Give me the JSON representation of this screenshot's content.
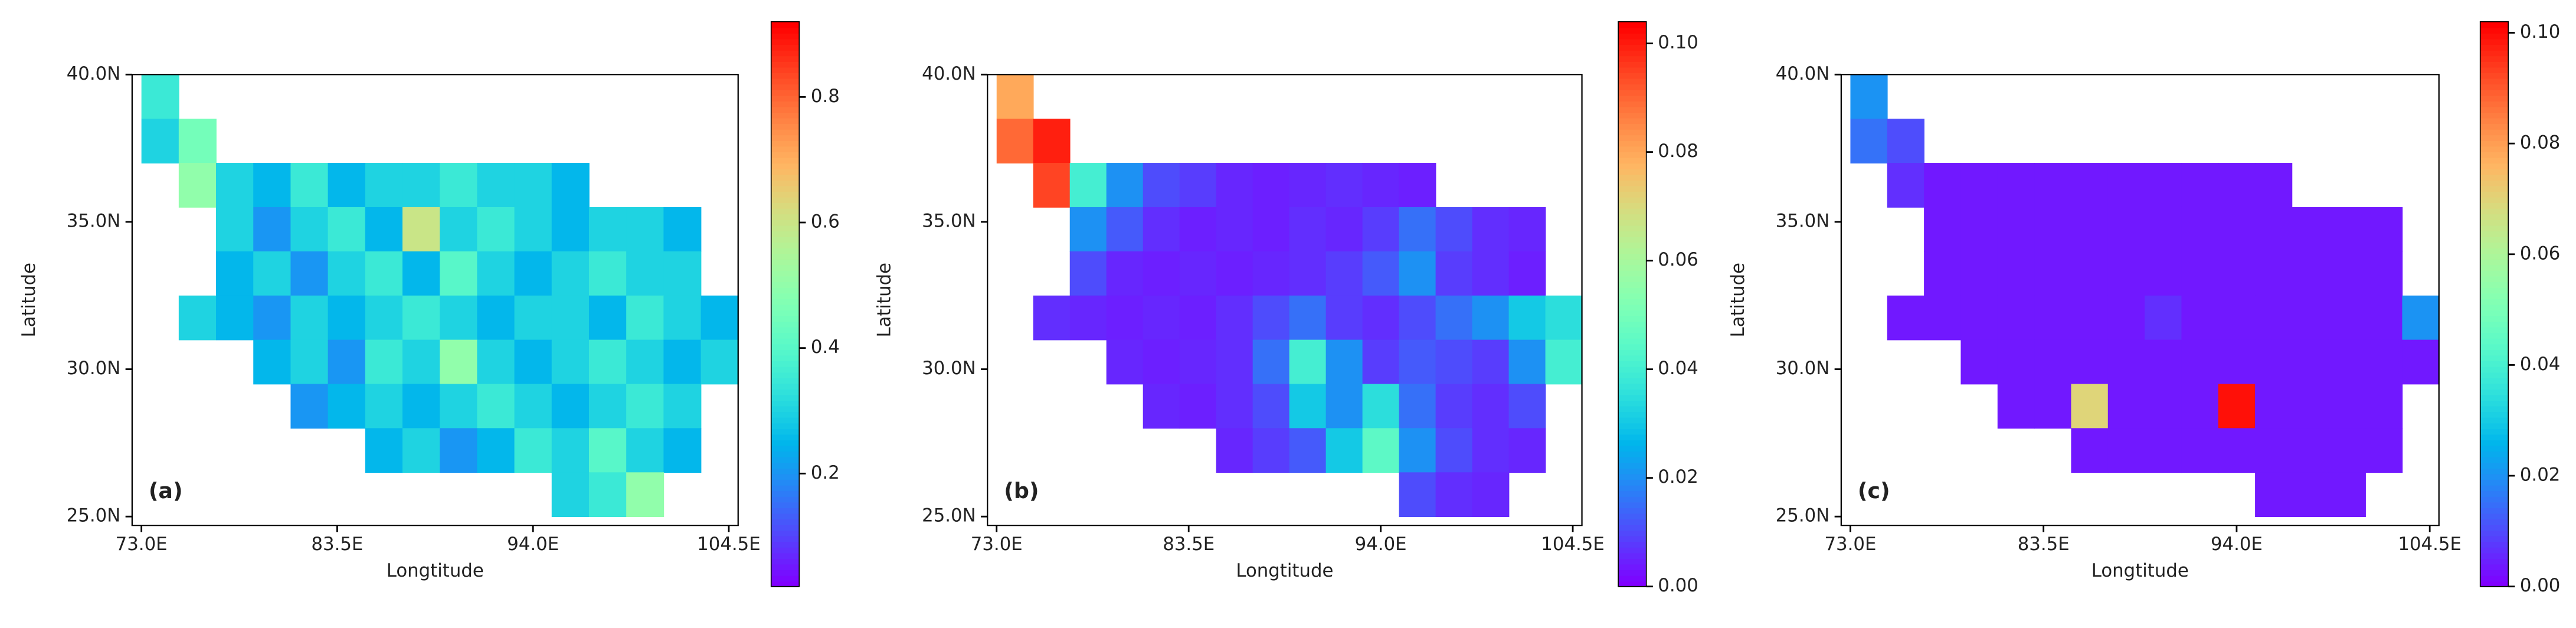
{
  "chart_data": [
    {
      "type": "heatmap",
      "panel_label": "(a)",
      "xlabel": "Longtitude",
      "ylabel": "Latitude",
      "colormap": "rainbow",
      "x": [
        74,
        76,
        78,
        80,
        82,
        84,
        86,
        88,
        90,
        92,
        94,
        96,
        98,
        100,
        102,
        104
      ],
      "y": [
        39.25,
        37.75,
        36.25,
        34.75,
        33.25,
        31.75,
        30.25,
        28.75,
        27.25,
        25.75
      ],
      "xlim": [
        72.5,
        105
      ],
      "ylim": [
        24.7,
        40
      ],
      "xticks": [
        {
          "value": 73,
          "label": "73.0E"
        },
        {
          "value": 83.5,
          "label": "83.5E"
        },
        {
          "value": 94,
          "label": "94.0E"
        },
        {
          "value": 104.5,
          "label": "104.5E"
        }
      ],
      "yticks": [
        {
          "value": 25,
          "label": "25.0N"
        },
        {
          "value": 30,
          "label": "30.0N"
        },
        {
          "value": 35,
          "label": "35.0N"
        },
        {
          "value": 40,
          "label": "40.0N"
        }
      ],
      "clim": [
        0.02,
        0.92
      ],
      "cticks": [
        0.2,
        0.4,
        0.6,
        0.8
      ],
      "values": [
        [
          0.35,
          null,
          null,
          null,
          null,
          null,
          null,
          null,
          null,
          null,
          null,
          null,
          null,
          null,
          null,
          null
        ],
        [
          0.3,
          0.45,
          null,
          null,
          null,
          null,
          null,
          null,
          null,
          null,
          null,
          null,
          null,
          null,
          null,
          null
        ],
        [
          null,
          0.5,
          0.3,
          0.25,
          0.35,
          0.25,
          0.3,
          0.3,
          0.35,
          0.3,
          0.3,
          0.25,
          null,
          null,
          null,
          null
        ],
        [
          null,
          null,
          0.3,
          0.2,
          0.3,
          0.35,
          0.25,
          0.6,
          0.3,
          0.35,
          0.3,
          0.25,
          0.3,
          0.3,
          0.25,
          null
        ],
        [
          null,
          null,
          0.25,
          0.3,
          0.2,
          0.3,
          0.35,
          0.25,
          0.4,
          0.3,
          0.25,
          0.3,
          0.35,
          0.3,
          0.3,
          null
        ],
        [
          null,
          0.3,
          0.25,
          0.2,
          0.3,
          0.25,
          0.3,
          0.35,
          0.3,
          0.25,
          0.3,
          0.3,
          0.25,
          0.35,
          0.3,
          0.25
        ],
        [
          null,
          null,
          null,
          0.25,
          0.3,
          0.2,
          0.35,
          0.3,
          0.5,
          0.3,
          0.25,
          0.3,
          0.35,
          0.3,
          0.25,
          0.3
        ],
        [
          null,
          null,
          null,
          null,
          0.2,
          0.25,
          0.3,
          0.25,
          0.3,
          0.35,
          0.3,
          0.25,
          0.3,
          0.35,
          0.3,
          null
        ],
        [
          null,
          null,
          null,
          null,
          null,
          null,
          0.25,
          0.3,
          0.2,
          0.25,
          0.35,
          0.3,
          0.4,
          0.3,
          0.25,
          null
        ],
        [
          null,
          null,
          null,
          null,
          null,
          null,
          null,
          null,
          null,
          null,
          null,
          0.3,
          0.35,
          0.5,
          null,
          null
        ]
      ]
    },
    {
      "type": "heatmap",
      "panel_label": "(b)",
      "xlabel": "Longtitude",
      "ylabel": "Latitude",
      "colormap": "rainbow",
      "x": [
        74,
        76,
        78,
        80,
        82,
        84,
        86,
        88,
        90,
        92,
        94,
        96,
        98,
        100,
        102,
        104
      ],
      "y": [
        39.25,
        37.75,
        36.25,
        34.75,
        33.25,
        31.75,
        30.25,
        28.75,
        27.25,
        25.75
      ],
      "xlim": [
        72.5,
        105
      ],
      "ylim": [
        24.7,
        40
      ],
      "xticks": [
        {
          "value": 73,
          "label": "73.0E"
        },
        {
          "value": 83.5,
          "label": "83.5E"
        },
        {
          "value": 94,
          "label": "94.0E"
        },
        {
          "value": 104.5,
          "label": "104.5E"
        }
      ],
      "yticks": [
        {
          "value": 25,
          "label": "25.0N"
        },
        {
          "value": 30,
          "label": "30.0N"
        },
        {
          "value": 35,
          "label": "35.0N"
        },
        {
          "value": 40,
          "label": "40.0N"
        }
      ],
      "clim": [
        0,
        0.104
      ],
      "cticks": [
        {
          "value": 0,
          "label": "0.00"
        },
        {
          "value": 0.02,
          "label": "0.02"
        },
        {
          "value": 0.04,
          "label": "0.04"
        },
        {
          "value": 0.06,
          "label": "0.06"
        },
        {
          "value": 0.08,
          "label": "0.08"
        },
        {
          "value": 0.1,
          "label": "0.10"
        }
      ],
      "values": [
        [
          0.08,
          null,
          null,
          null,
          null,
          null,
          null,
          null,
          null,
          null,
          null,
          null,
          null,
          null,
          null,
          null
        ],
        [
          0.09,
          0.1,
          null,
          null,
          null,
          null,
          null,
          null,
          null,
          null,
          null,
          null,
          null,
          null,
          null,
          null
        ],
        [
          null,
          0.095,
          0.04,
          0.02,
          0.01,
          0.008,
          0.005,
          0.004,
          0.005,
          0.006,
          0.005,
          0.004,
          null,
          null,
          null,
          null
        ],
        [
          null,
          null,
          0.02,
          0.012,
          0.006,
          0.004,
          0.005,
          0.004,
          0.006,
          0.005,
          0.008,
          0.015,
          0.01,
          0.006,
          0.005,
          null
        ],
        [
          null,
          null,
          0.01,
          0.005,
          0.004,
          0.005,
          0.004,
          0.005,
          0.006,
          0.008,
          0.012,
          0.02,
          0.008,
          0.006,
          0.004,
          null
        ],
        [
          null,
          0.006,
          0.005,
          0.004,
          0.005,
          0.004,
          0.006,
          0.01,
          0.015,
          0.008,
          0.006,
          0.01,
          0.015,
          0.02,
          0.03,
          0.035
        ],
        [
          null,
          null,
          null,
          0.005,
          0.004,
          0.005,
          0.006,
          0.015,
          0.04,
          0.02,
          0.008,
          0.012,
          0.01,
          0.008,
          0.02,
          0.04
        ],
        [
          null,
          null,
          null,
          null,
          0.005,
          0.004,
          0.006,
          0.01,
          0.03,
          0.02,
          0.035,
          0.015,
          0.008,
          0.006,
          0.01,
          null
        ],
        [
          null,
          null,
          null,
          null,
          null,
          null,
          0.005,
          0.008,
          0.012,
          0.03,
          0.045,
          0.02,
          0.01,
          0.006,
          0.005,
          null
        ],
        [
          null,
          null,
          null,
          null,
          null,
          null,
          null,
          null,
          null,
          null,
          null,
          0.01,
          0.006,
          0.005,
          null,
          null
        ]
      ]
    },
    {
      "type": "heatmap",
      "panel_label": "(c)",
      "xlabel": "Longtitude",
      "ylabel": "Latitude",
      "colormap": "rainbow",
      "x": [
        74,
        76,
        78,
        80,
        82,
        84,
        86,
        88,
        90,
        92,
        94,
        96,
        98,
        100,
        102,
        104
      ],
      "y": [
        39.25,
        37.75,
        36.25,
        34.75,
        33.25,
        31.75,
        30.25,
        28.75,
        27.25,
        25.75
      ],
      "xlim": [
        72.5,
        105
      ],
      "ylim": [
        24.7,
        40
      ],
      "xticks": [
        {
          "value": 73,
          "label": "73.0E"
        },
        {
          "value": 83.5,
          "label": "83.5E"
        },
        {
          "value": 94,
          "label": "94.0E"
        },
        {
          "value": 104.5,
          "label": "104.5E"
        }
      ],
      "yticks": [
        {
          "value": 25,
          "label": "25.0N"
        },
        {
          "value": 30,
          "label": "30.0N"
        },
        {
          "value": 35,
          "label": "35.0N"
        },
        {
          "value": 40,
          "label": "40.0N"
        }
      ],
      "clim": [
        0,
        0.102
      ],
      "cticks": [
        {
          "value": 0,
          "label": "0.00"
        },
        {
          "value": 0.02,
          "label": "0.02"
        },
        {
          "value": 0.04,
          "label": "0.04"
        },
        {
          "value": 0.06,
          "label": "0.06"
        },
        {
          "value": 0.08,
          "label": "0.08"
        },
        {
          "value": 0.1,
          "label": "0.10"
        }
      ],
      "values": [
        [
          0.02,
          null,
          null,
          null,
          null,
          null,
          null,
          null,
          null,
          null,
          null,
          null,
          null,
          null,
          null,
          null
        ],
        [
          0.015,
          0.01,
          null,
          null,
          null,
          null,
          null,
          null,
          null,
          null,
          null,
          null,
          null,
          null,
          null,
          null
        ],
        [
          null,
          0.006,
          0.003,
          0.003,
          0.003,
          0.003,
          0.003,
          0.003,
          0.003,
          0.003,
          0.003,
          0.003,
          null,
          null,
          null,
          null
        ],
        [
          null,
          null,
          0.003,
          0.003,
          0.003,
          0.003,
          0.003,
          0.003,
          0.003,
          0.003,
          0.003,
          0.003,
          0.003,
          0.003,
          0.003,
          null
        ],
        [
          null,
          null,
          0.003,
          0.003,
          0.003,
          0.003,
          0.003,
          0.003,
          0.003,
          0.003,
          0.003,
          0.003,
          0.003,
          0.003,
          0.003,
          null
        ],
        [
          null,
          0.003,
          0.003,
          0.003,
          0.003,
          0.003,
          0.003,
          0.003,
          0.006,
          0.003,
          0.003,
          0.003,
          0.003,
          0.003,
          0.003,
          0.02
        ],
        [
          null,
          null,
          null,
          0.003,
          0.003,
          0.003,
          0.003,
          0.003,
          0.003,
          0.003,
          0.003,
          0.003,
          0.003,
          0.003,
          0.003,
          0.003
        ],
        [
          null,
          null,
          null,
          null,
          0.003,
          0.003,
          0.07,
          0.003,
          0.003,
          0.003,
          0.1,
          0.003,
          0.003,
          0.003,
          0.003,
          null
        ],
        [
          null,
          null,
          null,
          null,
          null,
          null,
          0.003,
          0.003,
          0.003,
          0.003,
          0.003,
          0.003,
          0.003,
          0.003,
          0.003,
          null
        ],
        [
          null,
          null,
          null,
          null,
          null,
          null,
          null,
          null,
          null,
          null,
          null,
          0.003,
          0.003,
          0.003,
          null,
          null
        ]
      ]
    }
  ]
}
